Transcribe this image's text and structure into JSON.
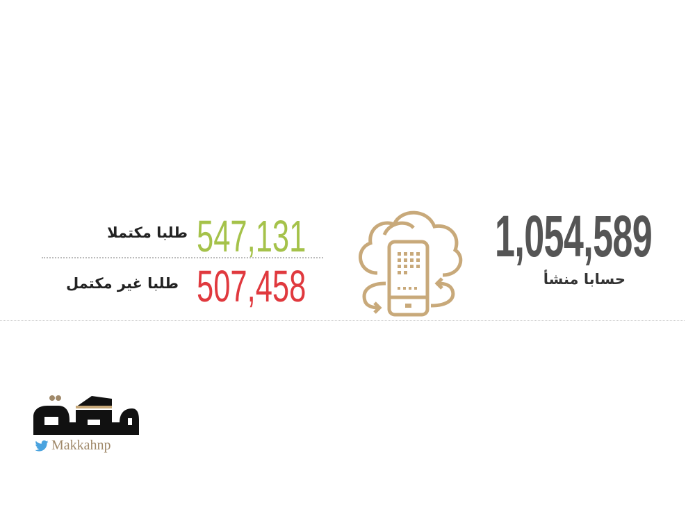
{
  "stats": {
    "accounts_created": {
      "value": "1,054,589",
      "label": "حسابا منشأ",
      "color": "#555555"
    },
    "completed_requests": {
      "value": "547,131",
      "label": "طلبا مكتملا",
      "color": "#a5c24a"
    },
    "incomplete_requests": {
      "value": "507,458",
      "label": "طلبا غير مكتمل",
      "color": "#e0393e"
    }
  },
  "icon": {
    "name": "cloud-phone-sync-icon",
    "color": "#c8a97a"
  },
  "logo": {
    "text": "مكة",
    "handle": "Makkahnp",
    "handle_icon": "twitter-icon"
  }
}
